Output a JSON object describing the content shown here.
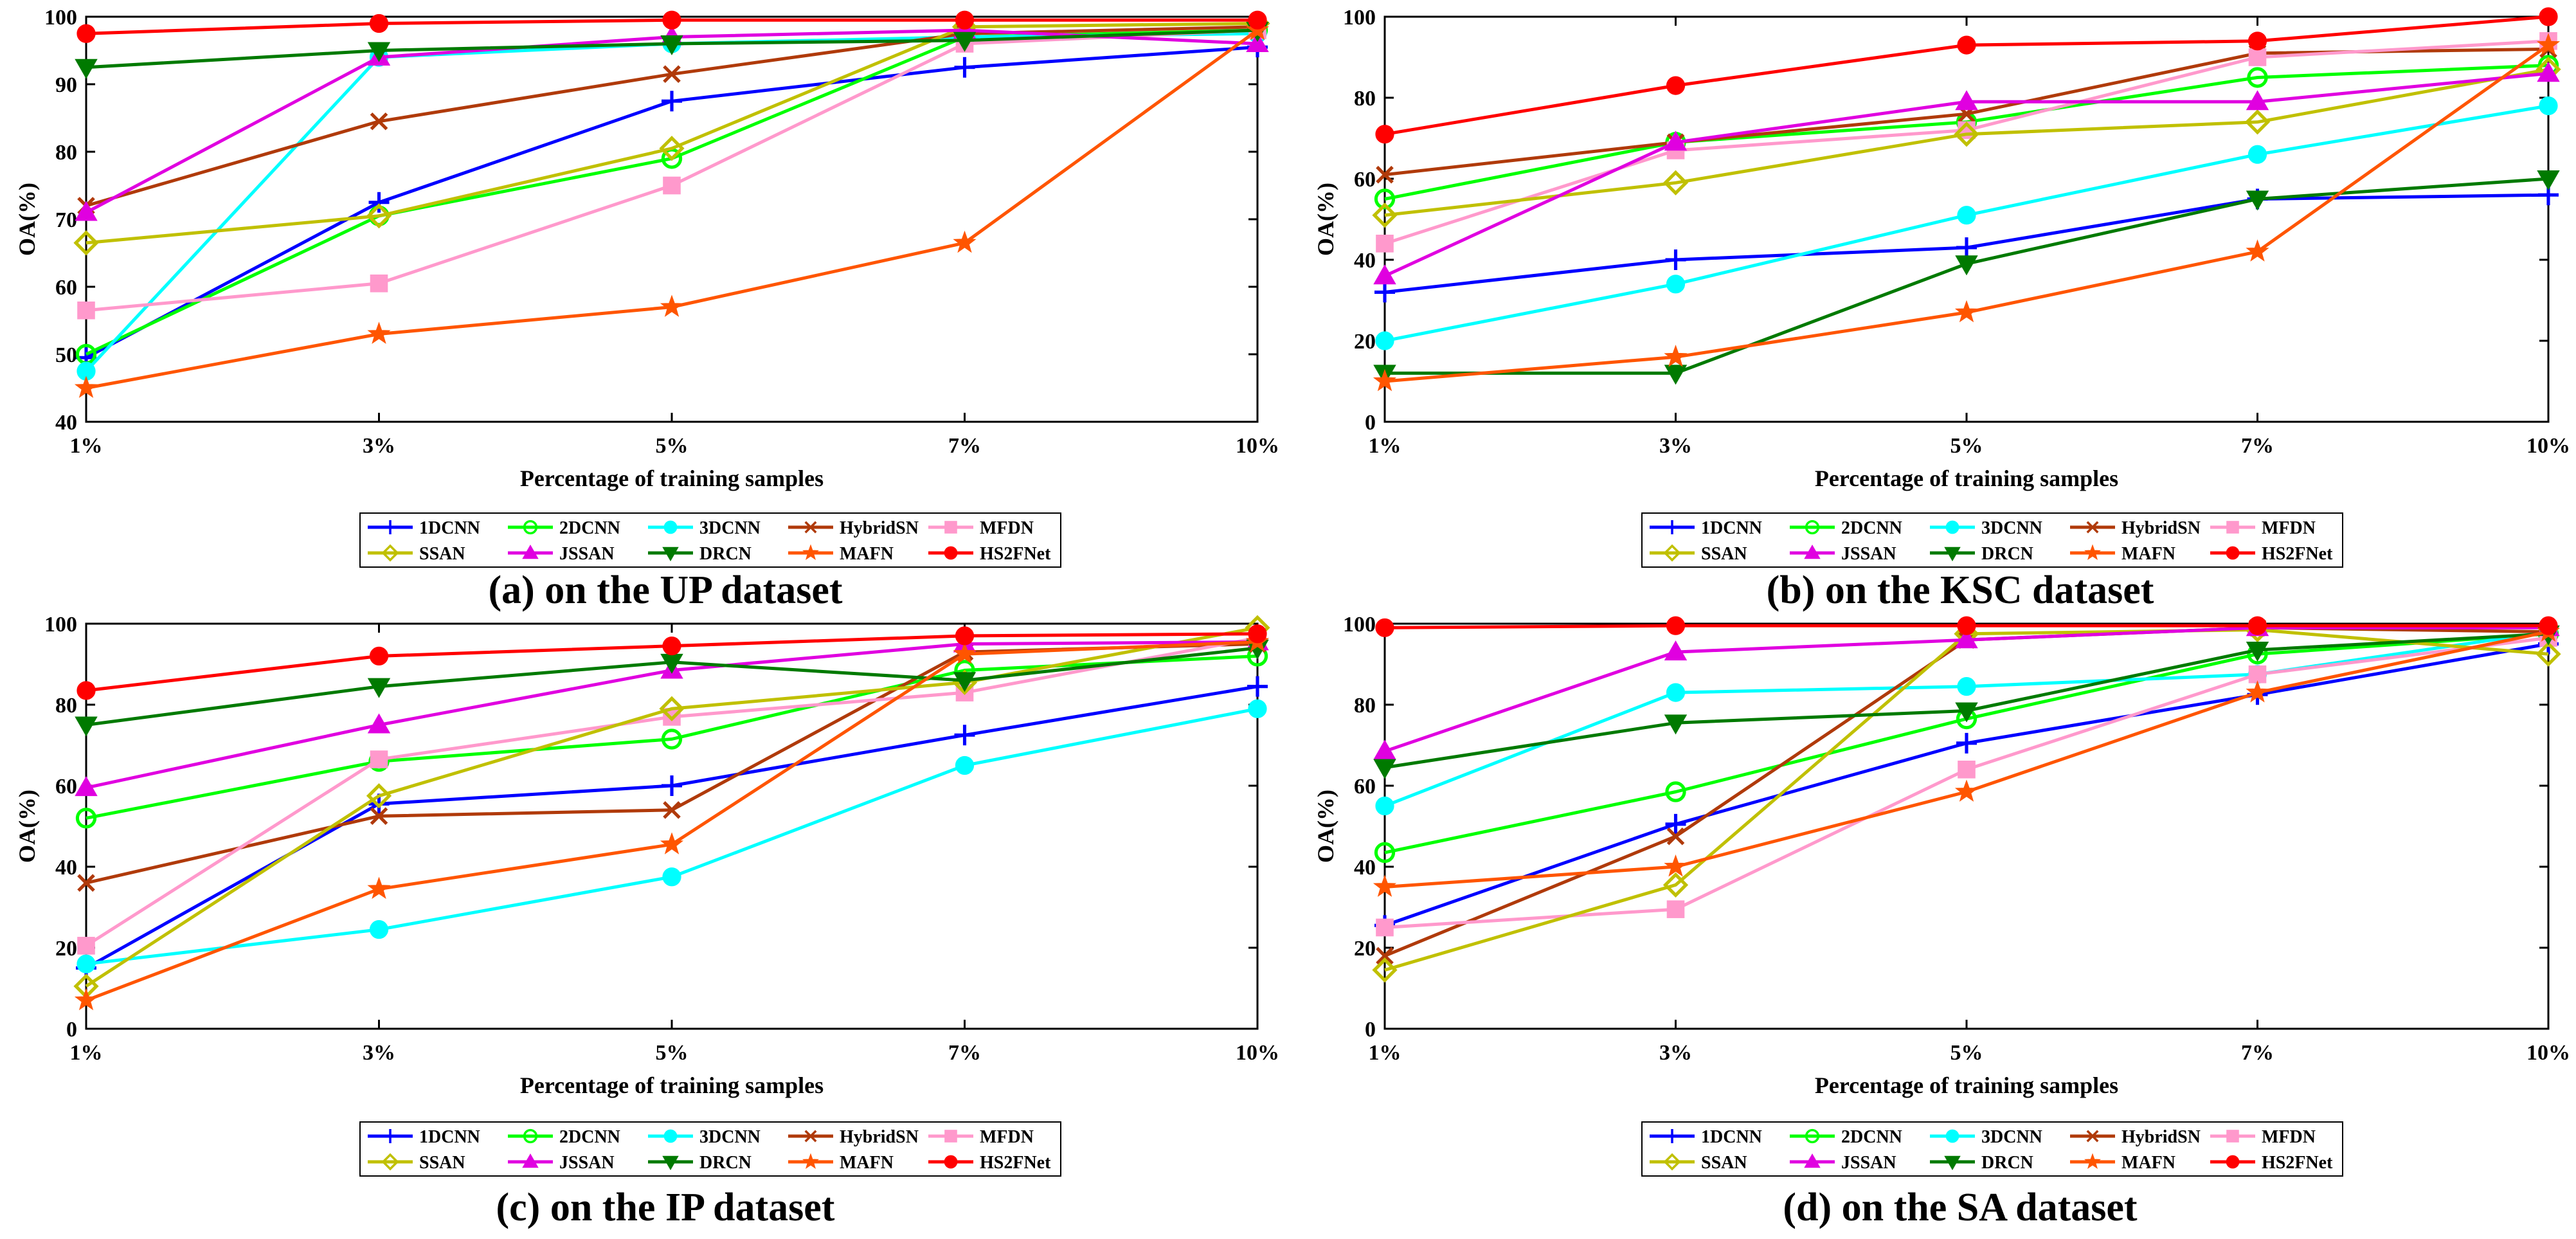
{
  "figure": {
    "legend_rows": [
      [
        "1DCNN",
        "2DCNN",
        "3DCNN",
        "HybridSN",
        "MFDN"
      ],
      [
        "SSAN",
        "JSSAN",
        "DRCN",
        "MAFN",
        "HS2FNet"
      ]
    ]
  },
  "series_styles": [
    {
      "name": "1DCNN",
      "color": "#0000ff",
      "marker": "plus"
    },
    {
      "name": "2DCNN",
      "color": "#00ff00",
      "marker": "circle-open"
    },
    {
      "name": "3DCNN",
      "color": "#00ffff",
      "marker": "circle-filled"
    },
    {
      "name": "HybridSN",
      "color": "#b03a0a",
      "marker": "x"
    },
    {
      "name": "MFDN",
      "color": "#ff99cc",
      "marker": "square"
    },
    {
      "name": "SSAN",
      "color": "#c0c000",
      "marker": "diamond"
    },
    {
      "name": "JSSAN",
      "color": "#e000e0",
      "marker": "triangle-up"
    },
    {
      "name": "DRCN",
      "color": "#007a00",
      "marker": "triangle-down"
    },
    {
      "name": "MAFN",
      "color": "#ff5500",
      "marker": "star"
    },
    {
      "name": "HS2FNet",
      "color": "#ff0000",
      "marker": "circle-filled"
    }
  ],
  "chart_data": [
    {
      "type": "line",
      "title": "(a) on the UP dataset",
      "xlabel": "Percentage of training samples",
      "ylabel": "OA(%)",
      "categories": [
        "1%",
        "3%",
        "5%",
        "7%",
        "10%"
      ],
      "ylim": [
        40,
        100
      ],
      "yticks": [
        "40",
        "50",
        "60",
        "70",
        "80",
        "90",
        "100"
      ],
      "series": [
        {
          "name": "1DCNN",
          "values": [
            49.5,
            72.5,
            87.5,
            92.5,
            95.5
          ]
        },
        {
          "name": "2DCNN",
          "values": [
            50,
            70.5,
            79,
            97,
            98
          ]
        },
        {
          "name": "3DCNN",
          "values": [
            47.5,
            94,
            96,
            97,
            97.5
          ]
        },
        {
          "name": "HybridSN",
          "values": [
            72,
            84.5,
            91.5,
            97.5,
            98.5
          ]
        },
        {
          "name": "MFDN",
          "values": [
            56.5,
            60.5,
            75,
            96,
            98
          ]
        },
        {
          "name": "SSAN",
          "values": [
            66.5,
            70.5,
            80.5,
            98.5,
            99
          ]
        },
        {
          "name": "JSSAN",
          "values": [
            71,
            94,
            97,
            98,
            96
          ]
        },
        {
          "name": "DRCN",
          "values": [
            92.5,
            95,
            96,
            96.5,
            98
          ]
        },
        {
          "name": "MAFN",
          "values": [
            45,
            53,
            57,
            66.5,
            98
          ]
        },
        {
          "name": "HS2FNet",
          "values": [
            97.5,
            99,
            99.5,
            99.5,
            99.5
          ]
        }
      ]
    },
    {
      "type": "line",
      "title": "(b) on the KSC dataset",
      "xlabel": "Percentage of training samples",
      "ylabel": "OA(%)",
      "categories": [
        "1%",
        "3%",
        "5%",
        "7%",
        "10%"
      ],
      "ylim": [
        0,
        100
      ],
      "yticks": [
        "0",
        "20",
        "40",
        "60",
        "80",
        "100"
      ],
      "series": [
        {
          "name": "1DCNN",
          "values": [
            32,
            40,
            43,
            55,
            56
          ]
        },
        {
          "name": "2DCNN",
          "values": [
            55,
            69,
            74,
            85,
            88
          ]
        },
        {
          "name": "3DCNN",
          "values": [
            20,
            34,
            51,
            66,
            78
          ]
        },
        {
          "name": "HybridSN",
          "values": [
            61,
            69,
            76,
            91,
            92
          ]
        },
        {
          "name": "MFDN",
          "values": [
            44,
            67,
            72,
            90,
            94
          ]
        },
        {
          "name": "SSAN",
          "values": [
            51,
            59,
            71,
            74,
            87
          ]
        },
        {
          "name": "JSSAN",
          "values": [
            36,
            69,
            79,
            79,
            86
          ]
        },
        {
          "name": "DRCN",
          "values": [
            12,
            12,
            39,
            55,
            60
          ]
        },
        {
          "name": "MAFN",
          "values": [
            10,
            16,
            27,
            42,
            93
          ]
        },
        {
          "name": "HS2FNet",
          "values": [
            71,
            83,
            93,
            94,
            100
          ]
        }
      ]
    },
    {
      "type": "line",
      "title": "(c) on the IP dataset",
      "xlabel": "Percentage of training samples",
      "ylabel": "OA(%)",
      "categories": [
        "1%",
        "3%",
        "5%",
        "7%",
        "10%"
      ],
      "ylim": [
        0,
        100
      ],
      "yticks": [
        "0",
        "20",
        "40",
        "60",
        "80",
        "100"
      ],
      "series": [
        {
          "name": "1DCNN",
          "values": [
            15,
            55.5,
            60,
            72.5,
            84.5
          ]
        },
        {
          "name": "2DCNN",
          "values": [
            52,
            66,
            71.5,
            88.5,
            92
          ]
        },
        {
          "name": "3DCNN",
          "values": [
            16,
            24.5,
            37.5,
            65,
            79
          ]
        },
        {
          "name": "HybridSN",
          "values": [
            36,
            52.5,
            54,
            93,
            95
          ]
        },
        {
          "name": "MFDN",
          "values": [
            20.5,
            66.5,
            77,
            83,
            96.5
          ]
        },
        {
          "name": "SSAN",
          "values": [
            10.5,
            57.5,
            79,
            85.5,
            99
          ]
        },
        {
          "name": "JSSAN",
          "values": [
            59.5,
            75,
            88.5,
            95,
            95.5
          ]
        },
        {
          "name": "DRCN",
          "values": [
            75,
            84.5,
            90.5,
            86,
            94
          ]
        },
        {
          "name": "MAFN",
          "values": [
            7,
            34.5,
            45.5,
            92.5,
            95.5
          ]
        },
        {
          "name": "HS2FNet",
          "values": [
            83.5,
            92,
            94.5,
            97,
            97.5
          ]
        }
      ]
    },
    {
      "type": "line",
      "title": "(d) on the SA dataset",
      "xlabel": "Percentage of training samples",
      "ylabel": "OA(%)",
      "categories": [
        "1%",
        "3%",
        "5%",
        "7%",
        "10%"
      ],
      "ylim": [
        0,
        100
      ],
      "yticks": [
        "0",
        "20",
        "40",
        "60",
        "80",
        "100"
      ],
      "series": [
        {
          "name": "1DCNN",
          "values": [
            25.5,
            50.5,
            70.5,
            82.5,
            95
          ]
        },
        {
          "name": "2DCNN",
          "values": [
            43.5,
            58.5,
            76.5,
            92.5,
            97.5
          ]
        },
        {
          "name": "3DCNN",
          "values": [
            55,
            83,
            84.5,
            87.5,
            98
          ]
        },
        {
          "name": "HybridSN",
          "values": [
            18,
            47.5,
            96,
            99,
            98
          ]
        },
        {
          "name": "MFDN",
          "values": [
            25,
            29.5,
            64,
            87.5,
            96.5
          ]
        },
        {
          "name": "SSAN",
          "values": [
            14.5,
            35.5,
            97.5,
            98.5,
            92.5
          ]
        },
        {
          "name": "JSSAN",
          "values": [
            68.5,
            93,
            96,
            99,
            99
          ]
        },
        {
          "name": "DRCN",
          "values": [
            64.5,
            75.5,
            78.5,
            93.5,
            97.5
          ]
        },
        {
          "name": "MAFN",
          "values": [
            35,
            40,
            58.5,
            83,
            98
          ]
        },
        {
          "name": "HS2FNet",
          "values": [
            99,
            99.5,
            99.5,
            99.5,
            99.5
          ]
        }
      ]
    }
  ]
}
